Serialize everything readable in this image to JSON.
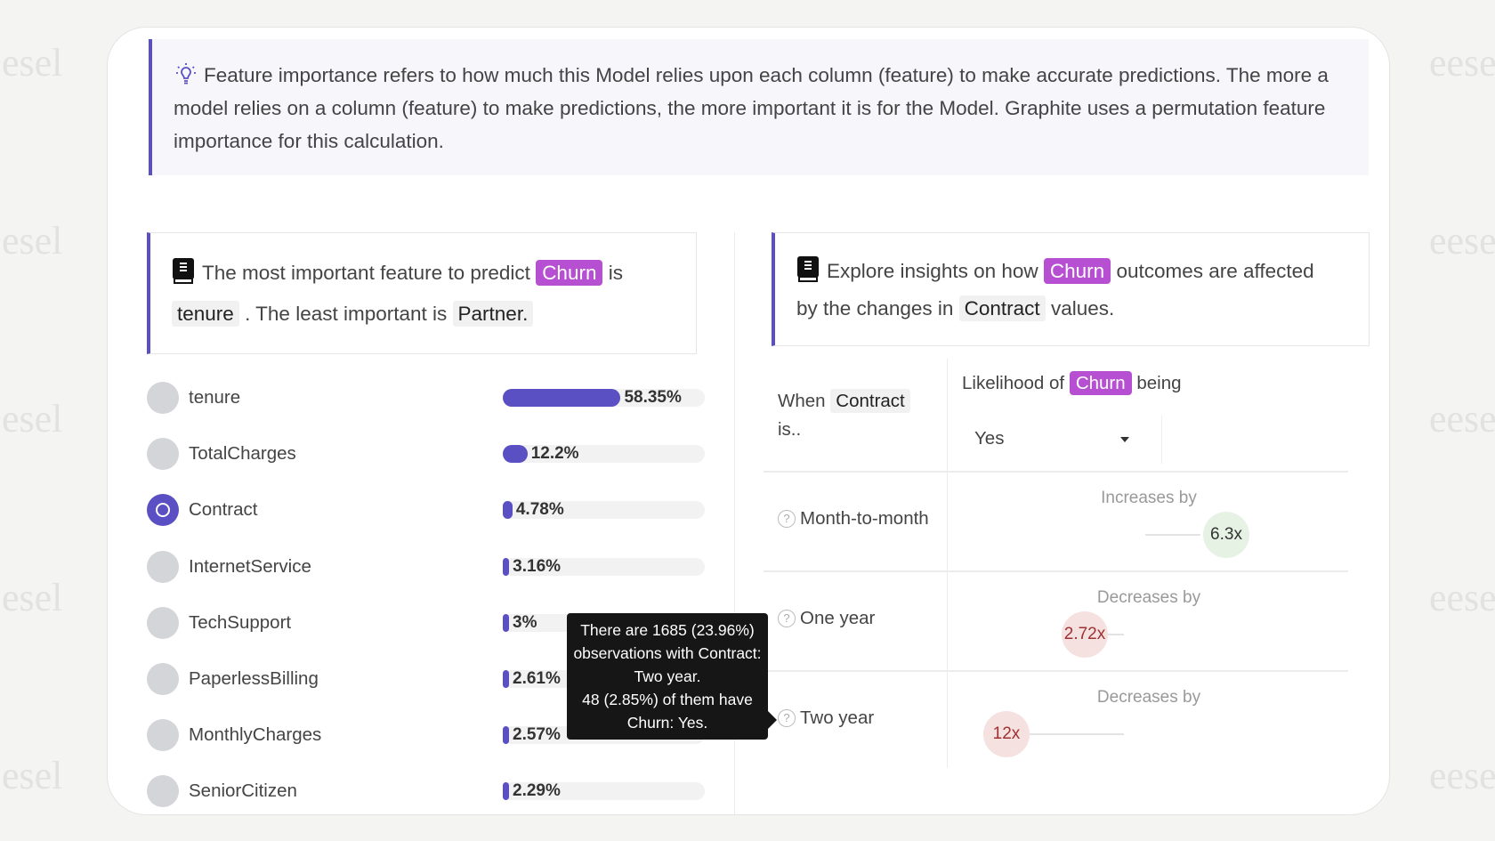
{
  "watermark": {
    "left": "esel",
    "right": "eese"
  },
  "info": {
    "icon": "lightbulb-icon",
    "text": "Feature importance refers to how much this Model relies upon each column (feature) to make accurate predictions. The more a model relies on a column (feature) to make predictions, the more important it is for the Model. Graphite uses a permutation feature importance for this calculation."
  },
  "summary": {
    "icon": "book-icon",
    "prefix": "The most important feature to predict",
    "target": "Churn",
    "is": "is",
    "most": "tenure",
    "middle": ". The least important is",
    "least": "Partner."
  },
  "features": [
    {
      "name": "tenure",
      "value": 58.35,
      "label": "58.35%",
      "selected": false
    },
    {
      "name": "TotalCharges",
      "value": 12.2,
      "label": "12.2%",
      "selected": false
    },
    {
      "name": "Contract",
      "value": 4.78,
      "label": "4.78%",
      "selected": true
    },
    {
      "name": "InternetService",
      "value": 3.16,
      "label": "3.16%",
      "selected": false
    },
    {
      "name": "TechSupport",
      "value": 3,
      "label": "3%",
      "selected": false
    },
    {
      "name": "PaperlessBilling",
      "value": 2.61,
      "label": "2.61%",
      "selected": false
    },
    {
      "name": "MonthlyCharges",
      "value": 2.57,
      "label": "2.57%",
      "selected": false
    },
    {
      "name": "SeniorCitizen",
      "value": 2.29,
      "label": "2.29%",
      "selected": false
    }
  ],
  "insights": {
    "icon": "book-icon",
    "prefix": "Explore insights on how",
    "target": "Churn",
    "middle": "outcomes are affected",
    "line2_prefix": "by the changes in",
    "feature": "Contract",
    "suffix": "values."
  },
  "table": {
    "when": "When",
    "feature": "Contract",
    "is": "is..",
    "likelihood": "Likelihood of",
    "target": "Churn",
    "being": "being",
    "dropdown_value": "Yes",
    "rows": [
      {
        "value": "Month-to-month",
        "direction": "Increases by",
        "factor": "6.3x",
        "type": "increase"
      },
      {
        "value": "One year",
        "direction": "Decreases by",
        "factor": "2.72x",
        "type": "decrease"
      },
      {
        "value": "Two year",
        "direction": "Decreases by",
        "factor": "12x",
        "type": "decrease"
      }
    ]
  },
  "tooltip": {
    "line1": "There are 1685 (23.96%) observations with Contract: Two year.",
    "line2": "48 (2.85%) of them have Churn: Yes."
  },
  "colors": {
    "accent": "#5b4fc4",
    "target_tag": "#b64fd1",
    "increase": "#e6f2e4",
    "decrease": "#f6e1e1"
  }
}
